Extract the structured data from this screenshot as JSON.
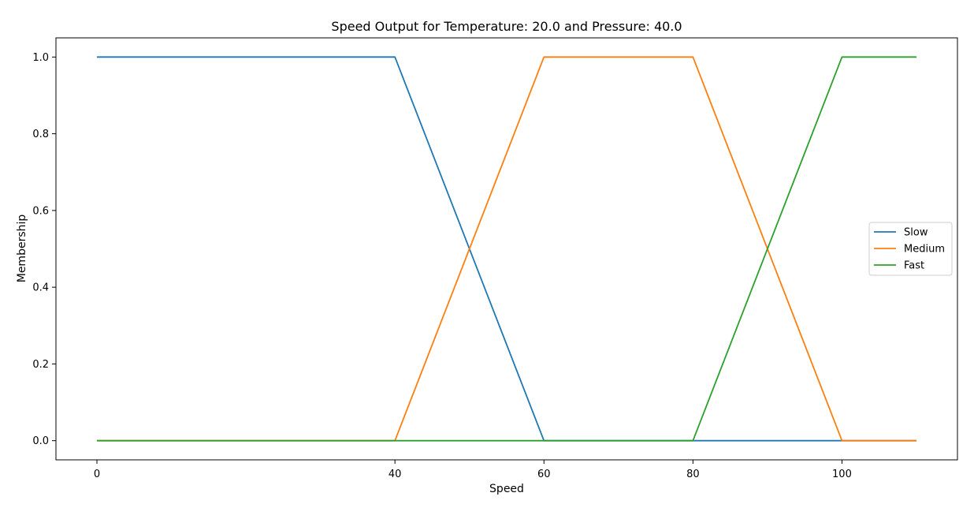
{
  "chart_data": {
    "type": "line",
    "title": "Speed Output for Temperature: 20.0 and Pressure: 40.0",
    "xlabel": "Speed",
    "ylabel": "Membership",
    "xlim": [
      -5.5,
      115.5
    ],
    "ylim": [
      -0.05,
      1.05
    ],
    "x_ticks": [
      0,
      40,
      60,
      80,
      100
    ],
    "x_tick_labels": [
      "0",
      "40",
      "60",
      "80",
      "100"
    ],
    "y_ticks": [
      0.0,
      0.2,
      0.4,
      0.6,
      0.8,
      1.0
    ],
    "y_tick_labels": [
      "0.0",
      "0.2",
      "0.4",
      "0.6",
      "0.8",
      "1.0"
    ],
    "grid": false,
    "legend_position": "center-right",
    "series": [
      {
        "name": "Slow",
        "color": "#1f77b4",
        "x": [
          0,
          40,
          60,
          110
        ],
        "y": [
          1,
          1,
          0,
          0
        ]
      },
      {
        "name": "Medium",
        "color": "#ff7f0e",
        "x": [
          0,
          40,
          60,
          80,
          100,
          110
        ],
        "y": [
          0,
          0,
          1,
          1,
          0,
          0
        ]
      },
      {
        "name": "Fast",
        "color": "#2ca02c",
        "x": [
          0,
          80,
          100,
          110
        ],
        "y": [
          0,
          0,
          1,
          1
        ]
      }
    ]
  }
}
